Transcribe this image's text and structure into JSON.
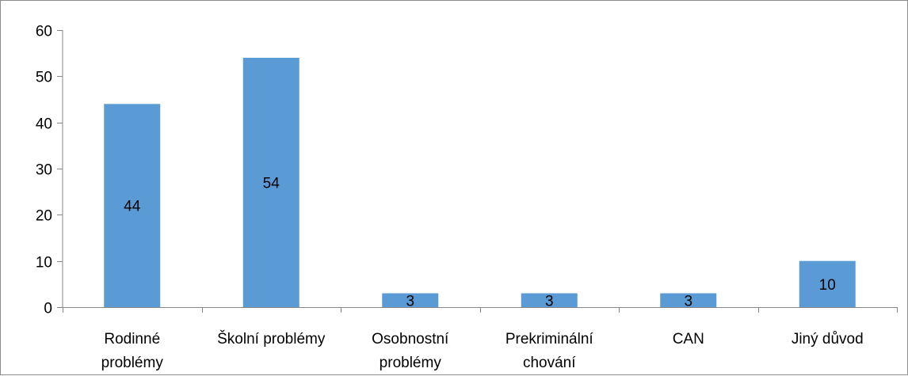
{
  "chart_data": {
    "type": "bar",
    "title": "",
    "xlabel": "",
    "ylabel": "",
    "categories": [
      [
        "Rodinné",
        "problémy"
      ],
      [
        "Školní problémy"
      ],
      [
        "Osobnostní",
        "problémy"
      ],
      [
        "Prekriminální",
        "chování"
      ],
      [
        "CAN"
      ],
      [
        "Jiný důvod"
      ]
    ],
    "values": [
      44,
      54,
      3,
      3,
      3,
      10
    ],
    "data_labels": [
      "44",
      "54",
      "3",
      "3",
      "3",
      "10"
    ],
    "ylim": [
      0,
      60
    ],
    "yticks": [
      "0",
      "10",
      "20",
      "30",
      "40",
      "50",
      "60"
    ],
    "grid": false,
    "legend": "none",
    "colors": {
      "bar": "#5b9bd5",
      "axis": "#868686",
      "border": "#8c8c8c",
      "text": "#000000"
    }
  }
}
